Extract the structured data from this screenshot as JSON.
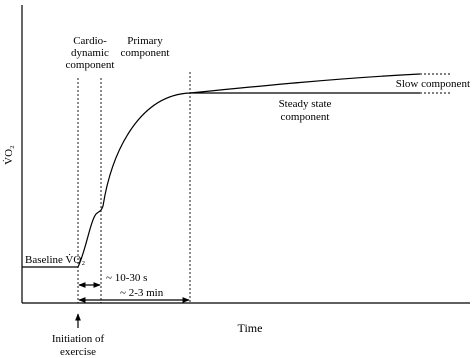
{
  "y_axis_label": "V̇O₂",
  "x_axis_label": "Time",
  "phases": [
    {
      "label": [
        "Cardio-",
        "dynamic",
        "component"
      ]
    },
    {
      "label": [
        "Primary",
        "component"
      ]
    },
    {
      "label": [
        "Steady state",
        "component"
      ]
    },
    {
      "label": [
        "Slow component"
      ]
    }
  ],
  "baseline_label": "Baseline V̇O₂",
  "durations": [
    "~ 10-30 s",
    "~ 2-3 min"
  ],
  "initiation_label": [
    "Initiation of",
    "exercise"
  ]
}
